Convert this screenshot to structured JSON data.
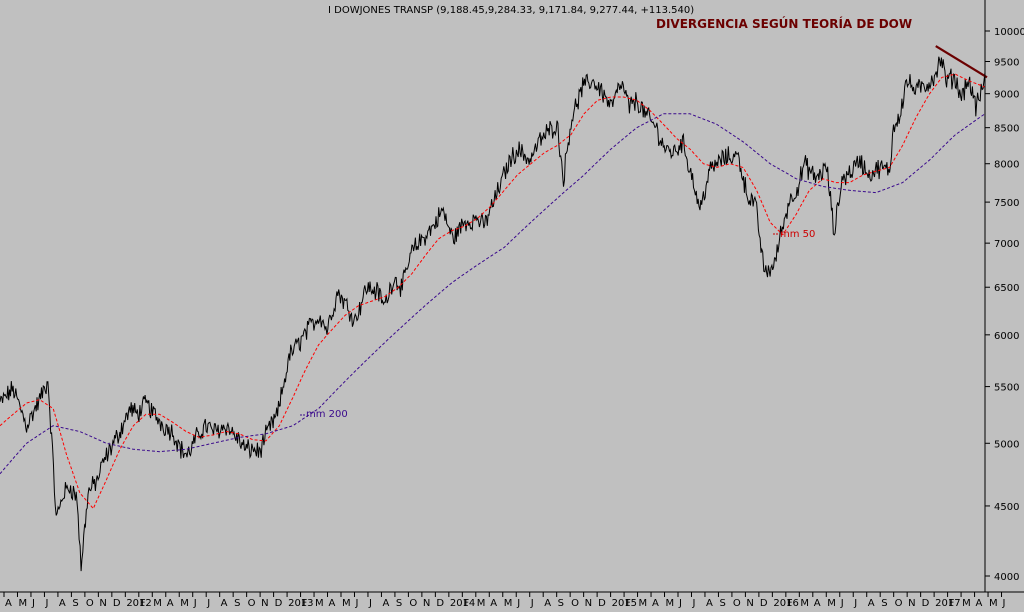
{
  "header": {
    "quote": "I DOWJONES TRANSP (9,188.45,9,284.33, 9,171.84, 9,277.44, +113.540)",
    "annotation": "DIVERGENCIA SEGÚN TEORÍA DE DOW"
  },
  "colors": {
    "background": "#c0c0c0",
    "price": "#000000",
    "ma50": "#ff0000",
    "ma200": "#3a0a8c",
    "trendline": "#6b0000",
    "annotation": "#6b0000",
    "ma200_label": "#3a0a8c",
    "ma50_label": "#cc0000"
  },
  "chart_data": {
    "type": "line",
    "scale": "log",
    "ylim": [
      3900,
      10400
    ],
    "y_ticks": [
      4000,
      4500,
      5000,
      5500,
      6000,
      6500,
      7000,
      7500,
      8000,
      8500,
      9000,
      9500,
      10000
    ],
    "x_tick_labels": [
      "A",
      "M",
      "J",
      "J",
      "A",
      "S",
      "O",
      "N",
      "D",
      "2012",
      "F",
      "M",
      "A",
      "M",
      "J",
      "J",
      "A",
      "S",
      "O",
      "N",
      "D",
      "2013",
      "F",
      "M",
      "A",
      "M",
      "J",
      "J",
      "A",
      "S",
      "O",
      "N",
      "D",
      "2014",
      "F",
      "M",
      "A",
      "M",
      "J",
      "J",
      "A",
      "S",
      "O",
      "N",
      "D",
      "2015",
      "F",
      "M",
      "A",
      "M",
      "J",
      "J",
      "A",
      "S",
      "O",
      "N",
      "D",
      "2016",
      "F",
      "M",
      "A",
      "M",
      "J",
      "J",
      "A",
      "S",
      "O",
      "N",
      "D",
      "2017",
      "F",
      "M",
      "A",
      "M",
      "J"
    ],
    "x_start": "2011-04-01",
    "series": [
      {
        "name": "I DOWJONES TRANSP",
        "style": "price",
        "points": [
          [
            "2011-04-01",
            5350
          ],
          [
            "2011-05-01",
            5480
          ],
          [
            "2011-06-01",
            5150
          ],
          [
            "2011-07-01",
            5380
          ],
          [
            "2011-07-20",
            5550
          ],
          [
            "2011-08-08",
            4400
          ],
          [
            "2011-08-25",
            4600
          ],
          [
            "2011-09-10",
            4650
          ],
          [
            "2011-09-25",
            4550
          ],
          [
            "2011-10-04",
            4050
          ],
          [
            "2011-10-20",
            4600
          ],
          [
            "2011-11-10",
            4700
          ],
          [
            "2011-11-25",
            4850
          ],
          [
            "2011-12-10",
            4950
          ],
          [
            "2012-01-01",
            5100
          ],
          [
            "2012-01-25",
            5300
          ],
          [
            "2012-02-10",
            5250
          ],
          [
            "2012-03-01",
            5350
          ],
          [
            "2012-03-20",
            5250
          ],
          [
            "2012-04-10",
            5150
          ],
          [
            "2012-05-01",
            5100
          ],
          [
            "2012-05-20",
            4950
          ],
          [
            "2012-06-05",
            4900
          ],
          [
            "2012-06-25",
            5050
          ],
          [
            "2012-07-15",
            5150
          ],
          [
            "2012-08-05",
            5100
          ],
          [
            "2012-09-01",
            5150
          ],
          [
            "2012-09-25",
            5050
          ],
          [
            "2012-10-15",
            4950
          ],
          [
            "2012-11-05",
            4950
          ],
          [
            "2012-11-16",
            4920
          ],
          [
            "2012-12-05",
            5100
          ],
          [
            "2012-12-28",
            5250
          ],
          [
            "2013-01-25",
            5800
          ],
          [
            "2013-02-20",
            5950
          ],
          [
            "2013-03-15",
            6100
          ],
          [
            "2013-04-05",
            6200
          ],
          [
            "2013-04-20",
            6050
          ],
          [
            "2013-05-15",
            6450
          ],
          [
            "2013-06-05",
            6300
          ],
          [
            "2013-06-24",
            6150
          ],
          [
            "2013-07-20",
            6500
          ],
          [
            "2013-08-15",
            6450
          ],
          [
            "2013-08-30",
            6300
          ],
          [
            "2013-09-20",
            6600
          ],
          [
            "2013-10-10",
            6500
          ],
          [
            "2013-11-01",
            6900
          ],
          [
            "2013-11-25",
            7050
          ],
          [
            "2013-12-20",
            7200
          ],
          [
            "2014-01-10",
            7400
          ],
          [
            "2014-02-03",
            7050
          ],
          [
            "2014-03-01",
            7250
          ],
          [
            "2014-04-01",
            7300
          ],
          [
            "2014-04-15",
            7200
          ],
          [
            "2014-05-15",
            7600
          ],
          [
            "2014-06-10",
            8000
          ],
          [
            "2014-07-01",
            8200
          ],
          [
            "2014-07-30",
            8050
          ],
          [
            "2014-08-20",
            8300
          ],
          [
            "2014-09-10",
            8450
          ],
          [
            "2014-09-30",
            8550
          ],
          [
            "2014-10-15",
            7800
          ],
          [
            "2014-11-01",
            8600
          ],
          [
            "2014-11-28",
            9100
          ],
          [
            "2014-12-20",
            9200
          ],
          [
            "2015-01-10",
            9050
          ],
          [
            "2015-02-01",
            8800
          ],
          [
            "2015-02-25",
            9150
          ],
          [
            "2015-03-15",
            8800
          ],
          [
            "2015-04-01",
            8900
          ],
          [
            "2015-04-20",
            8700
          ],
          [
            "2015-05-15",
            8500
          ],
          [
            "2015-06-05",
            8200
          ],
          [
            "2015-06-25",
            8150
          ],
          [
            "2015-07-15",
            8300
          ],
          [
            "2015-08-05",
            7850
          ],
          [
            "2015-08-24",
            7400
          ],
          [
            "2015-09-15",
            7900
          ],
          [
            "2015-10-10",
            8050
          ],
          [
            "2015-11-01",
            8100
          ],
          [
            "2015-11-20",
            8100
          ],
          [
            "2015-12-10",
            7600
          ],
          [
            "2015-12-30",
            7450
          ],
          [
            "2016-01-15",
            6800
          ],
          [
            "2016-01-20",
            6650
          ],
          [
            "2016-02-11",
            6750
          ],
          [
            "2016-02-25",
            7100
          ],
          [
            "2016-03-15",
            7500
          ],
          [
            "2016-04-05",
            7700
          ],
          [
            "2016-04-20",
            8000
          ],
          [
            "2016-05-15",
            7800
          ],
          [
            "2016-06-10",
            7950
          ],
          [
            "2016-06-27",
            7100
          ],
          [
            "2016-07-15",
            7800
          ],
          [
            "2016-08-05",
            7900
          ],
          [
            "2016-08-25",
            8050
          ],
          [
            "2016-09-15",
            7850
          ],
          [
            "2016-10-10",
            7950
          ],
          [
            "2016-11-01",
            7900
          ],
          [
            "2016-11-10",
            8500
          ],
          [
            "2016-11-25",
            8700
          ],
          [
            "2016-12-10",
            9200
          ],
          [
            "2016-12-30",
            9050
          ],
          [
            "2017-01-20",
            9100
          ],
          [
            "2017-02-10",
            9250
          ],
          [
            "2017-02-28",
            9550
          ],
          [
            "2017-03-10",
            9200
          ],
          [
            "2017-03-30",
            9250
          ],
          [
            "2017-04-15",
            8950
          ],
          [
            "2017-04-28",
            9200
          ],
          [
            "2017-05-10",
            9050
          ],
          [
            "2017-05-18",
            8800
          ],
          [
            "2017-05-30",
            9000
          ],
          [
            "2017-06-08",
            9277
          ]
        ]
      },
      {
        "name": "mm 50",
        "style": "ma50",
        "points": [
          [
            "2011-04-01",
            5150
          ],
          [
            "2011-05-01",
            5250
          ],
          [
            "2011-06-01",
            5350
          ],
          [
            "2011-07-01",
            5380
          ],
          [
            "2011-08-01",
            5300
          ],
          [
            "2011-09-01",
            4900
          ],
          [
            "2011-10-01",
            4600
          ],
          [
            "2011-11-01",
            4480
          ],
          [
            "2011-12-01",
            4700
          ],
          [
            "2012-01-01",
            4950
          ],
          [
            "2012-02-01",
            5150
          ],
          [
            "2012-03-01",
            5250
          ],
          [
            "2012-04-01",
            5250
          ],
          [
            "2012-05-01",
            5180
          ],
          [
            "2012-06-01",
            5100
          ],
          [
            "2012-07-01",
            5050
          ],
          [
            "2012-08-01",
            5070
          ],
          [
            "2012-09-01",
            5100
          ],
          [
            "2012-10-01",
            5080
          ],
          [
            "2012-11-01",
            5030
          ],
          [
            "2012-12-01",
            5020
          ],
          [
            "2013-01-01",
            5150
          ],
          [
            "2013-02-01",
            5400
          ],
          [
            "2013-03-01",
            5650
          ],
          [
            "2013-04-01",
            5900
          ],
          [
            "2013-05-01",
            6050
          ],
          [
            "2013-06-01",
            6200
          ],
          [
            "2013-07-01",
            6300
          ],
          [
            "2013-08-01",
            6350
          ],
          [
            "2013-09-01",
            6400
          ],
          [
            "2013-10-01",
            6500
          ],
          [
            "2013-11-01",
            6650
          ],
          [
            "2013-12-01",
            6850
          ],
          [
            "2014-01-01",
            7050
          ],
          [
            "2014-02-01",
            7150
          ],
          [
            "2014-03-01",
            7200
          ],
          [
            "2014-04-01",
            7300
          ],
          [
            "2014-05-01",
            7450
          ],
          [
            "2014-06-01",
            7650
          ],
          [
            "2014-07-01",
            7850
          ],
          [
            "2014-08-01",
            8000
          ],
          [
            "2014-09-01",
            8150
          ],
          [
            "2014-10-01",
            8250
          ],
          [
            "2014-11-01",
            8400
          ],
          [
            "2014-12-01",
            8700
          ],
          [
            "2015-01-01",
            8900
          ],
          [
            "2015-02-01",
            8950
          ],
          [
            "2015-03-01",
            8950
          ],
          [
            "2015-04-01",
            8900
          ],
          [
            "2015-05-01",
            8750
          ],
          [
            "2015-06-01",
            8550
          ],
          [
            "2015-07-01",
            8350
          ],
          [
            "2015-08-01",
            8200
          ],
          [
            "2015-09-01",
            8000
          ],
          [
            "2015-10-01",
            7950
          ],
          [
            "2015-11-01",
            8000
          ],
          [
            "2015-12-01",
            7950
          ],
          [
            "2016-01-01",
            7650
          ],
          [
            "2016-02-01",
            7250
          ],
          [
            "2016-03-01",
            7100
          ],
          [
            "2016-04-01",
            7350
          ],
          [
            "2016-05-01",
            7650
          ],
          [
            "2016-06-01",
            7800
          ],
          [
            "2016-07-01",
            7750
          ],
          [
            "2016-08-01",
            7750
          ],
          [
            "2016-09-01",
            7850
          ],
          [
            "2016-10-01",
            7900
          ],
          [
            "2016-11-01",
            7950
          ],
          [
            "2016-12-01",
            8250
          ],
          [
            "2017-01-01",
            8650
          ],
          [
            "2017-02-01",
            9000
          ],
          [
            "2017-03-01",
            9250
          ],
          [
            "2017-04-01",
            9300
          ],
          [
            "2017-05-01",
            9200
          ],
          [
            "2017-06-08",
            9100
          ]
        ]
      },
      {
        "name": "mm 200",
        "style": "ma200",
        "points": [
          [
            "2011-04-01",
            4750
          ],
          [
            "2011-06-01",
            5000
          ],
          [
            "2011-08-01",
            5150
          ],
          [
            "2011-10-01",
            5100
          ],
          [
            "2011-12-01",
            5000
          ],
          [
            "2012-02-01",
            4950
          ],
          [
            "2012-04-01",
            4930
          ],
          [
            "2012-06-01",
            4950
          ],
          [
            "2012-08-01",
            5000
          ],
          [
            "2012-10-01",
            5050
          ],
          [
            "2012-12-01",
            5080
          ],
          [
            "2013-02-01",
            5150
          ],
          [
            "2013-04-01",
            5300
          ],
          [
            "2013-06-01",
            5550
          ],
          [
            "2013-08-01",
            5800
          ],
          [
            "2013-10-01",
            6050
          ],
          [
            "2013-12-01",
            6300
          ],
          [
            "2014-02-01",
            6550
          ],
          [
            "2014-04-01",
            6750
          ],
          [
            "2014-06-01",
            6950
          ],
          [
            "2014-08-01",
            7250
          ],
          [
            "2014-10-01",
            7550
          ],
          [
            "2014-12-01",
            7850
          ],
          [
            "2015-02-01",
            8200
          ],
          [
            "2015-04-01",
            8500
          ],
          [
            "2015-06-01",
            8700
          ],
          [
            "2015-08-01",
            8700
          ],
          [
            "2015-10-01",
            8550
          ],
          [
            "2015-12-01",
            8300
          ],
          [
            "2016-02-01",
            8000
          ],
          [
            "2016-04-01",
            7800
          ],
          [
            "2016-06-01",
            7700
          ],
          [
            "2016-08-01",
            7650
          ],
          [
            "2016-10-01",
            7620
          ],
          [
            "2016-12-01",
            7750
          ],
          [
            "2017-02-01",
            8050
          ],
          [
            "2017-04-01",
            8400
          ],
          [
            "2017-06-08",
            8700
          ]
        ]
      }
    ],
    "trendline": [
      [
        "2017-02-15",
        9750
      ],
      [
        "2017-06-08",
        9250
      ]
    ],
    "labels": [
      {
        "text": "mm 200",
        "series": "mm 200"
      },
      {
        "text": "mm 50",
        "series": "mm 50"
      }
    ]
  }
}
